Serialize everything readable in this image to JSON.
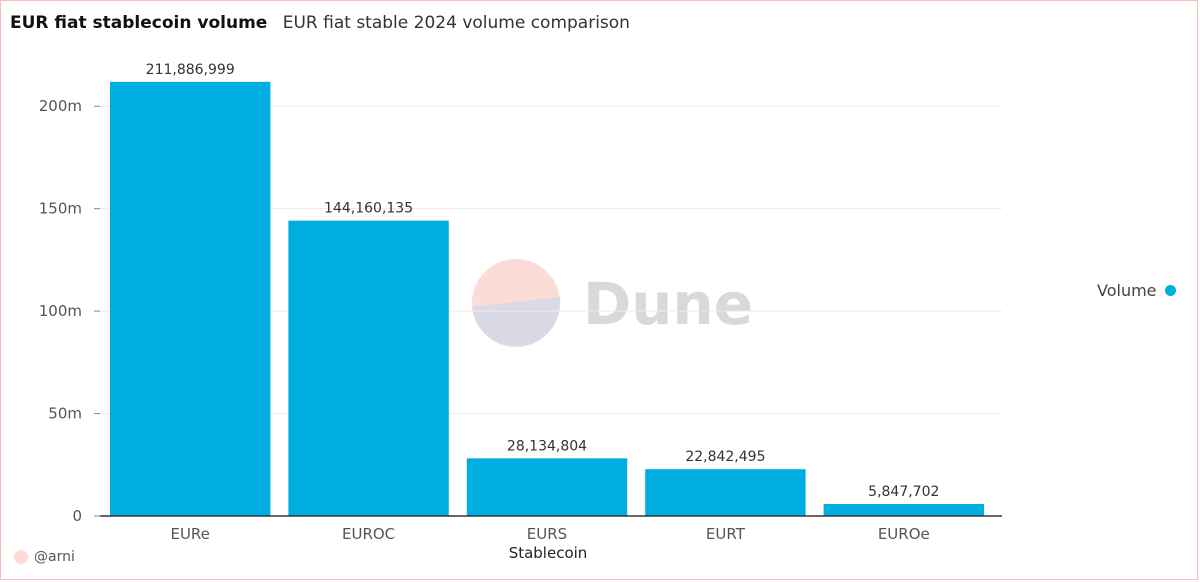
{
  "title": "EUR fiat stablecoin volume",
  "subtitle": "EUR fiat stable 2024 volume comparison",
  "watermark": "Dune",
  "credit": "@arni",
  "colors": {
    "bar": "#00ADE0",
    "grid": "#ececec",
    "axis": "#333333"
  },
  "chart_data": {
    "type": "bar",
    "xlabel": "Stablecoin",
    "ylabel": "",
    "categories": [
      "EURe",
      "EUROC",
      "EURS",
      "EURT",
      "EUROe"
    ],
    "series": [
      {
        "name": "Volume",
        "values": [
          211886999,
          144160135,
          28134804,
          22842495,
          5847702
        ],
        "labels": [
          "211,886,999",
          "144,160,135",
          "28,134,804",
          "22,842,495",
          "5,847,702"
        ]
      }
    ],
    "yticks": [
      0,
      50000000,
      100000000,
      150000000,
      200000000
    ],
    "ytick_labels": [
      "0",
      "50m",
      "100m",
      "150m",
      "200m"
    ],
    "ylim": [
      0,
      225000000
    ],
    "grid": true,
    "legend_position": "right"
  }
}
